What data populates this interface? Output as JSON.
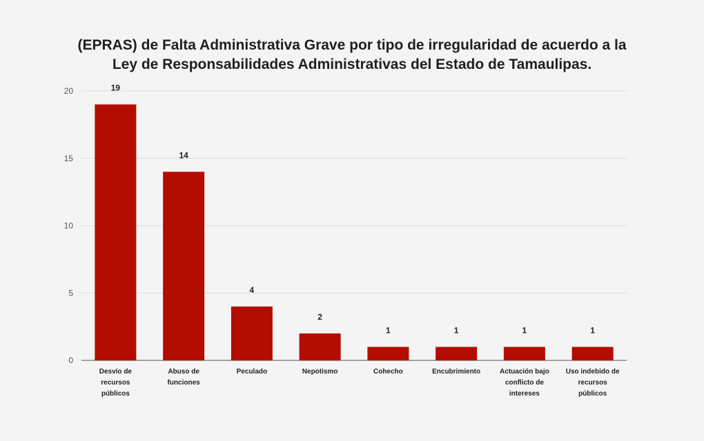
{
  "chart_data": {
    "type": "bar",
    "title_line1": "(EPRAS) de Falta Administrativa Grave por tipo de irregularidad de acuerdo a la",
    "title_line2": "Ley de Responsabilidades Administrativas del Estado de Tamaulipas.",
    "xlabel": "",
    "ylabel": "",
    "ylim": [
      0,
      20
    ],
    "yticks": [
      0,
      5,
      10,
      15,
      20
    ],
    "grid": true,
    "legend": "none",
    "bar_color": "#b30d02",
    "categories": [
      [
        "Desvío de",
        "recursos",
        "públicos"
      ],
      [
        "Abuso de",
        "funciones"
      ],
      [
        "Peculado"
      ],
      [
        "Nepotismo"
      ],
      [
        "Cohecho"
      ],
      [
        "Encubrimiento"
      ],
      [
        "Actuación bajo",
        "conflicto de",
        "intereses"
      ],
      [
        "Uso indebido de",
        "recursos",
        "públicos"
      ]
    ],
    "values": [
      19,
      14,
      4,
      2,
      1,
      1,
      1,
      1
    ]
  }
}
